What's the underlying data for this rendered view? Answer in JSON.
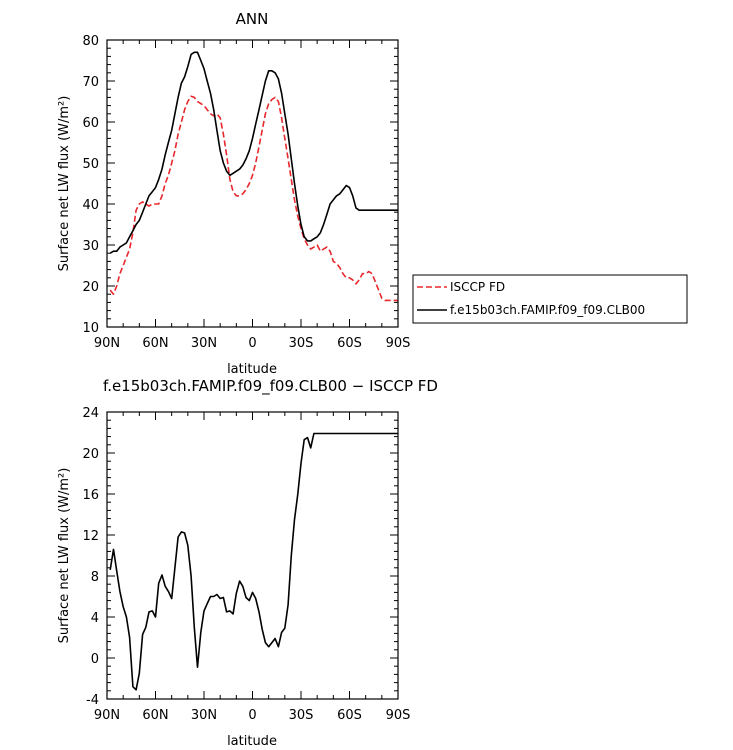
{
  "chart_data": [
    {
      "type": "line",
      "title": "ANN",
      "xlabel": "latitude",
      "ylabel": "Surface net LW flux (W/m²)",
      "ylim": [
        10,
        80
      ],
      "yticks": [
        10,
        20,
        30,
        40,
        50,
        60,
        70,
        80
      ],
      "xlim": [
        90,
        -90
      ],
      "xticks": [
        90,
        60,
        30,
        0,
        -30,
        -60,
        -90
      ],
      "xtick_labels": [
        "90N",
        "60N",
        "30N",
        "0",
        "30S",
        "60S",
        "90S"
      ],
      "legend": {
        "placement": "right-outside"
      },
      "series": [
        {
          "name": "ISCCP FD",
          "color": "#e8282d",
          "dash": "dashed",
          "x": [
            88,
            86,
            84,
            82,
            80,
            78,
            76,
            74,
            72,
            70,
            68,
            66,
            64,
            62,
            60,
            58,
            56,
            54,
            52,
            50,
            48,
            46,
            44,
            42,
            40,
            38,
            36,
            34,
            32,
            30,
            28,
            26,
            24,
            22,
            20,
            18,
            16,
            14,
            12,
            10,
            8,
            6,
            4,
            2,
            0,
            -2,
            -4,
            -6,
            -8,
            -10,
            -12,
            -14,
            -16,
            -18,
            -20,
            -22,
            -24,
            -26,
            -28,
            -30,
            -32,
            -34,
            -36,
            -38,
            -40,
            -42,
            -44,
            -46,
            -48,
            -50,
            -52,
            -54,
            -56,
            -58,
            -60,
            -62,
            -64,
            -66,
            -68,
            -70,
            -72,
            -74,
            -76,
            -78,
            -80,
            -82,
            -84,
            -86,
            -88,
            -90
          ],
          "y": [
            19.0,
            18.0,
            20.0,
            23.0,
            25.0,
            27.0,
            29.0,
            33.0,
            38.5,
            40.0,
            40.5,
            40.0,
            39.5,
            40.0,
            40.0,
            40.0,
            42.0,
            45.0,
            47.0,
            50.0,
            53.0,
            57.0,
            60.0,
            63.0,
            65.0,
            66.3,
            66.0,
            65.0,
            64.5,
            64.0,
            63.0,
            62.0,
            61.5,
            62.0,
            61.0,
            57.0,
            52.0,
            46.0,
            43.0,
            42.0,
            42.0,
            42.5,
            43.5,
            45.0,
            47.0,
            50.0,
            54.0,
            58.0,
            62.0,
            64.5,
            65.5,
            66.0,
            65.0,
            61.0,
            56.0,
            51.0,
            46.0,
            41.0,
            37.0,
            34.0,
            31.5,
            30.0,
            29.0,
            29.5,
            30.0,
            28.5,
            29.0,
            29.5,
            28.5,
            26.0,
            25.5,
            24.5,
            23.0,
            22.0,
            22.0,
            21.5,
            20.5,
            21.5,
            23.0,
            23.0,
            23.5,
            23.0,
            21.0,
            19.0,
            17.0,
            16.5,
            16.5,
            16.5,
            16.5,
            16.5
          ]
        },
        {
          "name": "f.e15b03ch.FAMIP.f09_f09.CLB00",
          "color": "#000000",
          "dash": "solid",
          "x": [
            88,
            86,
            84,
            82,
            80,
            78,
            76,
            74,
            72,
            70,
            68,
            66,
            64,
            62,
            60,
            58,
            56,
            54,
            52,
            50,
            48,
            46,
            44,
            42,
            40,
            38,
            36,
            34,
            32,
            30,
            28,
            26,
            24,
            22,
            20,
            18,
            16,
            14,
            12,
            10,
            8,
            6,
            4,
            2,
            0,
            -2,
            -4,
            -6,
            -8,
            -10,
            -12,
            -14,
            -16,
            -18,
            -20,
            -22,
            -24,
            -26,
            -28,
            -30,
            -32,
            -34,
            -36,
            -38,
            -40,
            -42,
            -44,
            -46,
            -48,
            -50,
            -52,
            -54,
            -56,
            -58,
            -60,
            -62,
            -64,
            -66,
            -68,
            -70,
            -72,
            -74,
            -76,
            -78,
            -80,
            -82,
            -84,
            -86,
            -88,
            -90
          ],
          "y": [
            28.0,
            28.5,
            28.5,
            29.5,
            30.0,
            30.5,
            32.0,
            33.5,
            35.0,
            36.0,
            38.0,
            40.0,
            42.0,
            43.0,
            44.0,
            46.0,
            48.5,
            52.0,
            55.0,
            58.0,
            62.0,
            66.0,
            69.5,
            71.0,
            73.5,
            76.5,
            77.0,
            77.0,
            75.0,
            73.0,
            70.0,
            67.0,
            63.0,
            58.0,
            53.0,
            50.0,
            48.0,
            47.0,
            47.5,
            48.0,
            48.5,
            49.5,
            51.0,
            53.0,
            56.0,
            59.5,
            63.0,
            66.5,
            70.0,
            72.5,
            72.5,
            72.0,
            70.5,
            67.0,
            62.0,
            57.0,
            51.0,
            45.0,
            39.5,
            35.0,
            32.0,
            31.0,
            31.0,
            31.5,
            32.0,
            33.0,
            35.0,
            37.5,
            40.0,
            41.0,
            42.0,
            42.5,
            43.5,
            44.5,
            44.0,
            42.0,
            39.0,
            38.5,
            38.5,
            38.5,
            38.5,
            38.5,
            38.5,
            38.5,
            38.5,
            38.5,
            38.5,
            38.5,
            38.5,
            38.5
          ]
        }
      ]
    },
    {
      "type": "line",
      "title": "f.e15b03ch.FAMIP.f09_f09.CLB00 − ISCCP FD",
      "xlabel": "latitude",
      "ylabel": "Surface net LW flux (W/m²)",
      "ylim": [
        -4,
        24
      ],
      "yticks": [
        -4,
        0,
        4,
        8,
        12,
        16,
        20,
        24
      ],
      "xlim": [
        90,
        -90
      ],
      "xticks": [
        90,
        60,
        30,
        0,
        -30,
        -60,
        -90
      ],
      "xtick_labels": [
        "90N",
        "60N",
        "30N",
        "0",
        "30S",
        "60S",
        "90S"
      ],
      "series": [
        {
          "color": "#000000",
          "dash": "solid",
          "x": [
            88,
            86,
            84,
            82,
            80,
            78,
            76,
            74,
            72,
            70,
            68,
            66,
            64,
            62,
            60,
            58,
            56,
            54,
            52,
            50,
            48,
            46,
            44,
            42,
            40,
            38,
            36,
            34,
            32,
            30,
            28,
            26,
            24,
            22,
            20,
            18,
            16,
            14,
            12,
            10,
            8,
            6,
            4,
            2,
            0,
            -2,
            -4,
            -6,
            -8,
            -10,
            -12,
            -14,
            -16,
            -18,
            -20,
            -22,
            -24,
            -26,
            -28,
            -30,
            -32,
            -34,
            -36,
            -38,
            -40,
            -42,
            -44,
            -46,
            -48,
            -50,
            -52,
            -54,
            -56,
            -58,
            -60,
            -62,
            -64,
            -66,
            -68,
            -70,
            -72,
            -74,
            -76,
            -78,
            -80,
            -82,
            -84,
            -86,
            -88,
            -90
          ],
          "y": [
            8.6,
            10.6,
            8.5,
            6.5,
            5.0,
            4.0,
            2.0,
            -2.8,
            -3.1,
            -1.5,
            2.3,
            3.0,
            4.5,
            4.6,
            4.0,
            7.3,
            8.1,
            7.0,
            6.5,
            5.8,
            8.8,
            11.8,
            12.3,
            12.2,
            11.0,
            8.0,
            3.0,
            -0.9,
            2.5,
            4.6,
            5.3,
            6.0,
            6.0,
            6.2,
            5.8,
            5.9,
            4.5,
            4.6,
            4.3,
            6.3,
            7.5,
            7.0,
            5.9,
            5.6,
            6.4,
            5.8,
            4.5,
            2.8,
            1.5,
            1.1,
            1.5,
            1.9,
            1.1,
            2.5,
            2.9,
            5.2,
            10.0,
            13.5,
            16.0,
            19.0,
            21.3,
            21.5,
            20.5,
            21.9,
            21.9,
            21.9,
            21.9,
            21.9,
            21.9,
            21.9,
            21.9,
            21.9,
            21.9,
            21.9,
            21.9,
            21.9,
            21.9,
            21.9,
            21.9,
            21.9,
            21.9,
            21.9,
            21.9,
            21.9,
            21.9,
            21.9,
            21.9,
            21.9,
            21.9,
            21.9
          ]
        }
      ]
    }
  ]
}
